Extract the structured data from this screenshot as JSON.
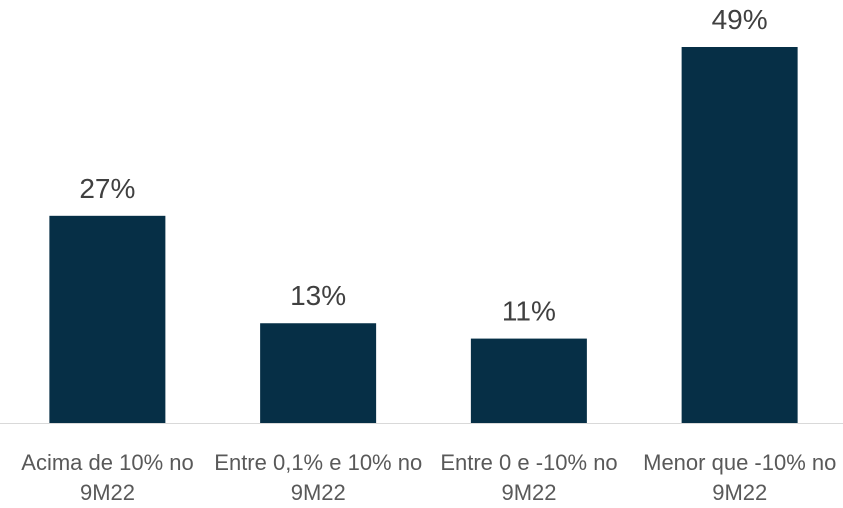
{
  "chart_data": {
    "type": "bar",
    "categories": [
      "Acima de 10% no 9M22",
      "Entre 0,1% e 10% no 9M22",
      "Entre 0 e -10% no 9M22",
      "Menor que -10% no 9M22"
    ],
    "values": [
      27,
      13,
      11,
      49
    ],
    "value_labels": [
      "27%",
      "13%",
      "11%",
      "49%"
    ],
    "color": "#062f46"
  }
}
